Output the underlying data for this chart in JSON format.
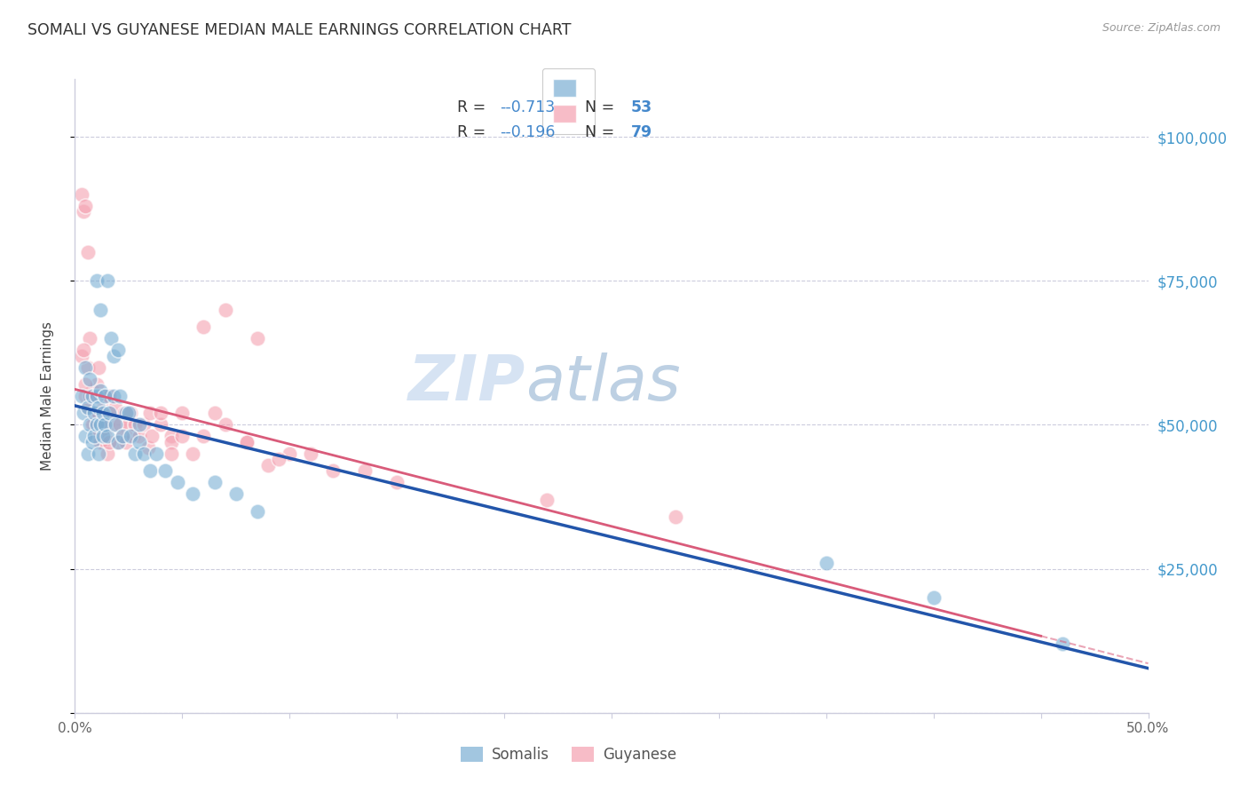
{
  "title": "SOMALI VS GUYANESE MEDIAN MALE EARNINGS CORRELATION CHART",
  "source": "Source: ZipAtlas.com",
  "ylabel": "Median Male Earnings",
  "watermark_zip": "ZIP",
  "watermark_atlas": "atlas",
  "xlim": [
    0.0,
    0.5
  ],
  "ylim": [
    0,
    110000
  ],
  "xticks": [
    0.0,
    0.05,
    0.1,
    0.15,
    0.2,
    0.25,
    0.3,
    0.35,
    0.4,
    0.45,
    0.5
  ],
  "xticklabels": [
    "0.0%",
    "",
    "",
    "",
    "",
    "",
    "",
    "",
    "",
    "",
    "50.0%"
  ],
  "ytick_positions": [
    0,
    25000,
    50000,
    75000,
    100000
  ],
  "ytick_labels": [
    "",
    "$25,000",
    "$50,000",
    "$75,000",
    "$100,000"
  ],
  "legend_r_blue": "-0.713",
  "legend_n_blue": "53",
  "legend_r_pink": "-0.196",
  "legend_n_pink": "79",
  "legend_label_blue": "Somalis",
  "legend_label_pink": "Guyanese",
  "blue_scatter_color": "#7BAFD4",
  "pink_scatter_color": "#F4A0B0",
  "blue_line_color": "#2255AA",
  "pink_line_color": "#D95B7A",
  "number_color": "#4488CC",
  "title_color": "#333333",
  "right_label_color": "#4499CC",
  "background_color": "#FFFFFF",
  "grid_color": "#CCCCDD",
  "blue_scatter_x": [
    0.003,
    0.004,
    0.005,
    0.005,
    0.006,
    0.006,
    0.007,
    0.007,
    0.008,
    0.008,
    0.009,
    0.009,
    0.01,
    0.01,
    0.011,
    0.011,
    0.012,
    0.012,
    0.013,
    0.013,
    0.014,
    0.014,
    0.015,
    0.016,
    0.017,
    0.018,
    0.019,
    0.02,
    0.021,
    0.022,
    0.024,
    0.026,
    0.028,
    0.03,
    0.032,
    0.035,
    0.038,
    0.042,
    0.048,
    0.055,
    0.065,
    0.075,
    0.085,
    0.01,
    0.012,
    0.015,
    0.018,
    0.02,
    0.025,
    0.03,
    0.35,
    0.4,
    0.46
  ],
  "blue_scatter_y": [
    55000,
    52000,
    60000,
    48000,
    53000,
    45000,
    50000,
    58000,
    47000,
    55000,
    52000,
    48000,
    55000,
    50000,
    53000,
    45000,
    50000,
    56000,
    48000,
    52000,
    50000,
    55000,
    48000,
    52000,
    65000,
    55000,
    50000,
    47000,
    55000,
    48000,
    52000,
    48000,
    45000,
    47000,
    45000,
    42000,
    45000,
    42000,
    40000,
    38000,
    40000,
    38000,
    35000,
    75000,
    70000,
    75000,
    62000,
    63000,
    52000,
    50000,
    26000,
    20000,
    12000
  ],
  "pink_scatter_x": [
    0.003,
    0.004,
    0.005,
    0.005,
    0.006,
    0.006,
    0.007,
    0.007,
    0.008,
    0.008,
    0.009,
    0.009,
    0.01,
    0.01,
    0.011,
    0.011,
    0.012,
    0.012,
    0.013,
    0.013,
    0.014,
    0.015,
    0.016,
    0.017,
    0.018,
    0.019,
    0.02,
    0.021,
    0.022,
    0.023,
    0.024,
    0.025,
    0.026,
    0.027,
    0.028,
    0.03,
    0.032,
    0.034,
    0.036,
    0.04,
    0.045,
    0.05,
    0.055,
    0.06,
    0.07,
    0.08,
    0.09,
    0.1,
    0.12,
    0.15,
    0.003,
    0.004,
    0.005,
    0.006,
    0.007,
    0.008,
    0.009,
    0.01,
    0.011,
    0.012,
    0.013,
    0.014,
    0.015,
    0.016,
    0.035,
    0.045,
    0.065,
    0.08,
    0.095,
    0.11,
    0.135,
    0.045,
    0.22,
    0.28,
    0.06,
    0.07,
    0.085,
    0.05,
    0.04
  ],
  "pink_scatter_y": [
    90000,
    87000,
    88000,
    55000,
    80000,
    60000,
    65000,
    53000,
    52000,
    56000,
    55000,
    50000,
    57000,
    52000,
    60000,
    50000,
    55000,
    48000,
    53000,
    47000,
    55000,
    50000,
    55000,
    52000,
    50000,
    53000,
    47000,
    50000,
    48000,
    52000,
    47000,
    50000,
    52000,
    48000,
    50000,
    48000,
    50000,
    46000,
    48000,
    50000,
    48000,
    52000,
    45000,
    67000,
    50000,
    47000,
    43000,
    45000,
    42000,
    40000,
    62000,
    63000,
    57000,
    53000,
    55000,
    50000,
    52000,
    48000,
    52000,
    47000,
    50000,
    48000,
    45000,
    47000,
    52000,
    47000,
    52000,
    47000,
    44000,
    45000,
    42000,
    45000,
    37000,
    34000,
    48000,
    70000,
    65000,
    48000,
    52000
  ]
}
